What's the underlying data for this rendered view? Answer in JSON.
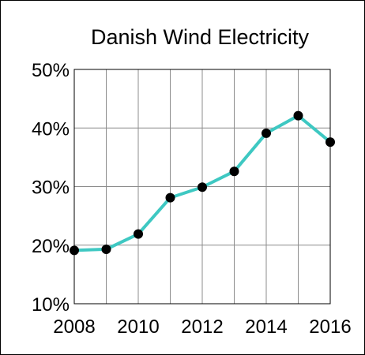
{
  "chart_data": {
    "type": "line",
    "title": "Danish Wind Electricity",
    "xlabel": "",
    "ylabel": "",
    "x": [
      2008,
      2009,
      2010,
      2011,
      2012,
      2013,
      2014,
      2015,
      2016
    ],
    "series": [
      {
        "values": [
          19.1,
          19.3,
          21.9,
          28.1,
          29.9,
          32.6,
          39.1,
          42.1,
          37.6
        ]
      }
    ],
    "xlim": [
      2008,
      2016
    ],
    "ylim": [
      10,
      50
    ],
    "xticks": [
      2008,
      2010,
      2012,
      2014,
      2016
    ],
    "xtick_labels": [
      "2008",
      "2010",
      "2012",
      "2014",
      "2016"
    ],
    "yticks": [
      10,
      20,
      30,
      40,
      50
    ],
    "ytick_labels": [
      "10%",
      "20%",
      "30%",
      "40%",
      "50%"
    ],
    "x_grid_step": 1,
    "grid": true,
    "legend": "none",
    "line_color": "#3ec8c2",
    "marker_color": "#000000",
    "grid_color": "#8c8c8c"
  }
}
